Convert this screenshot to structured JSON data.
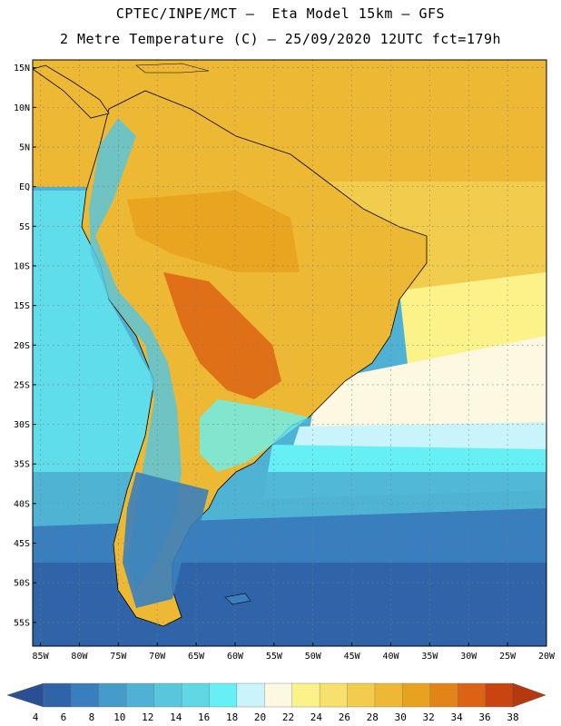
{
  "header": {
    "line1": "CPTEC/INPE/MCT –  Eta Model 15km – GFS",
    "line2": "2 Metre Temperature (C) – 25/09/2020 12UTC fct=179h"
  },
  "map": {
    "lat_labels": [
      "15N",
      "10N",
      "5N",
      "EQ",
      "5S",
      "10S",
      "15S",
      "20S",
      "25S",
      "30S",
      "35S",
      "40S",
      "45S",
      "50S",
      "55S"
    ],
    "lon_labels": [
      "85W",
      "80W",
      "75W",
      "70W",
      "65W",
      "60W",
      "55W",
      "50W",
      "45W",
      "40W",
      "35W",
      "30W",
      "25W",
      "20W"
    ],
    "lat_range": [
      -58,
      16
    ],
    "lon_range": [
      -86,
      -20
    ]
  },
  "colorbar": {
    "labels": [
      "4",
      "6",
      "8",
      "10",
      "12",
      "14",
      "16",
      "18",
      "20",
      "22",
      "24",
      "26",
      "28",
      "30",
      "32",
      "34",
      "36",
      "38"
    ],
    "colors": [
      "#2f64a8",
      "#3a7fbd",
      "#459bc9",
      "#4fb2d4",
      "#58c6dd",
      "#5fd7e4",
      "#66f0f5",
      "#c9f4fb",
      "#fdf8e2",
      "#fbf28a",
      "#f7e06b",
      "#f2cc4c",
      "#edb834",
      "#e8a31e",
      "#e38419",
      "#dc6313",
      "#c9440f"
    ],
    "low_color": "#2a4f92",
    "high_color": "#b5380f"
  }
}
